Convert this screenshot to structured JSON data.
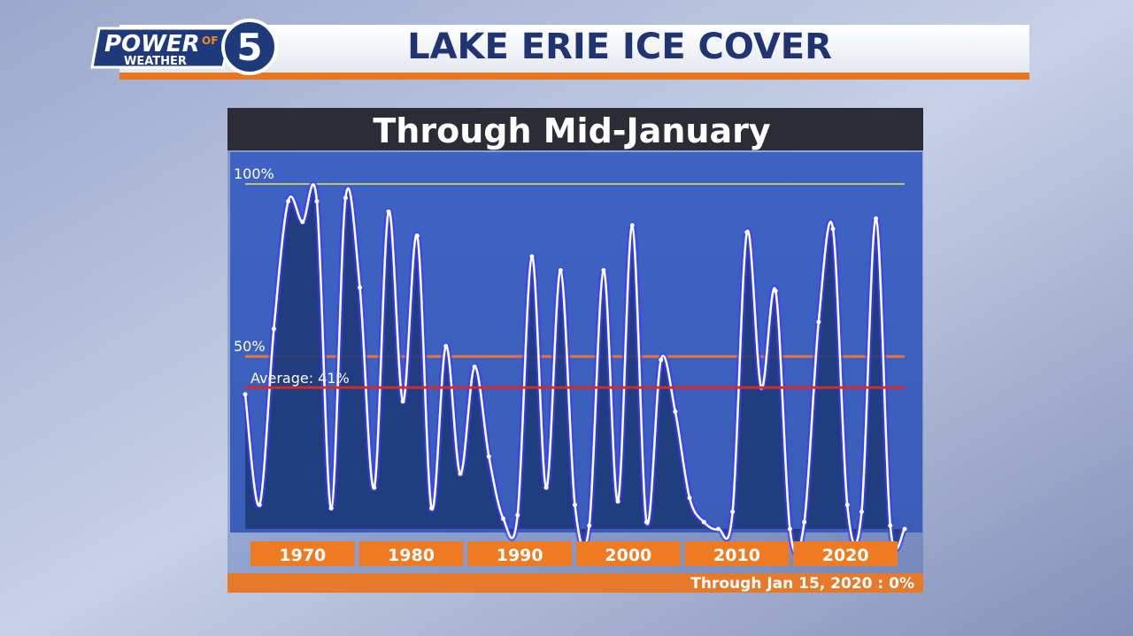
{
  "header": {
    "logo_power": "POWER",
    "logo_of": "OF",
    "logo_number": "5",
    "logo_weather": "WEATHER"
  },
  "chart_data": {
    "type": "line",
    "title": "LAKE ERIE ICE COVER",
    "subtitle": "Through Mid-January",
    "decade_labels": [
      "1970",
      "1980",
      "1990",
      "2000",
      "2010",
      "2020"
    ],
    "values": [
      39,
      7,
      58,
      95,
      89,
      95,
      6,
      96,
      70,
      12,
      92,
      37,
      85,
      6,
      53,
      16,
      47,
      21,
      3,
      4,
      79,
      12,
      75,
      7,
      1,
      75,
      8,
      88,
      2,
      49,
      34,
      9,
      2,
      0,
      5,
      86,
      41,
      69,
      0,
      2,
      60,
      87,
      7,
      5,
      90,
      1,
      0
    ],
    "color": "#ffffff",
    "fill": "#1e3a78",
    "ylim": [
      0,
      100
    ],
    "yticks": [
      {
        "value": 100,
        "label": "100%"
      },
      {
        "value": 50,
        "label": "50%"
      }
    ],
    "average": {
      "value": 41,
      "label": "Average: 41%"
    },
    "footnote": "Through Jan 15, 2020 : 0%"
  }
}
